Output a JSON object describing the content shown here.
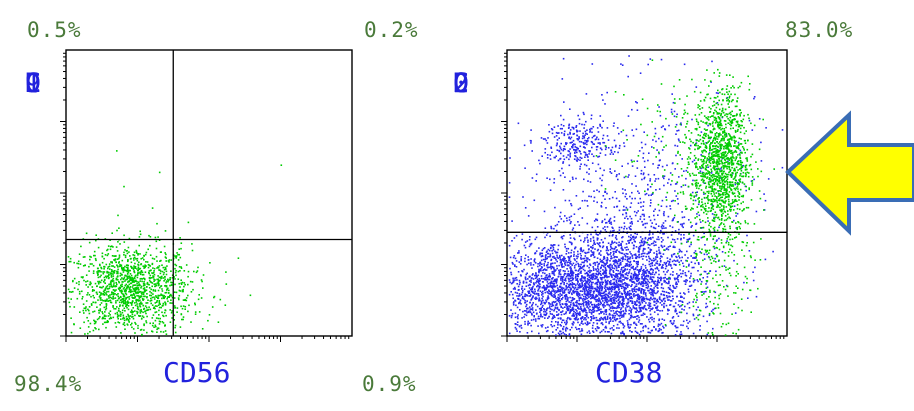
{
  "chart_data": [
    {
      "type": "scatter",
      "panel": "left",
      "xlabel": "CD56",
      "ylabel_chars": [
        "C",
        "D",
        "1",
        "9"
      ],
      "quadrants": {
        "top_left": "0.5%",
        "top_right": "0.2%",
        "bottom_left": "98.4%",
        "bottom_right": "0.9%"
      },
      "xlim": [
        0,
        4
      ],
      "ylim": [
        0,
        4
      ],
      "x_scale": "log",
      "y_scale": "log",
      "gates": {
        "x": 1.5,
        "y": 1.35
      },
      "series": [
        {
          "color": "#00cc00",
          "clusters": [
            {
              "cx": 0.9,
              "cy": 0.65,
              "sx": 0.42,
              "sy": 0.32,
              "n": 1400
            },
            {
              "cx": 2.2,
              "cy": 0.7,
              "sx": 0.6,
              "sy": 0.4,
              "n": 6
            }
          ],
          "points": [
            [
              0.8,
              2.1
            ],
            [
              1.3,
              2.3
            ],
            [
              0.7,
              2.6
            ],
            [
              3.0,
              2.4
            ],
            [
              1.7,
              1.6
            ],
            [
              2.4,
              1.1
            ],
            [
              1.2,
              1.8
            ]
          ]
        }
      ]
    },
    {
      "type": "scatter",
      "panel": "right",
      "xlabel": "CD38",
      "ylabel_chars": [
        "C",
        "D",
        "2",
        "0"
      ],
      "quadrants": {
        "top_right": "83.0%"
      },
      "xlim": [
        0,
        4
      ],
      "ylim": [
        0,
        4
      ],
      "x_scale": "log",
      "y_scale": "log",
      "gates": {
        "y": 1.45
      },
      "series": [
        {
          "color": "#2a2aee",
          "clusters": [
            {
              "cx": 0.9,
              "cy": 0.65,
              "sx": 0.55,
              "sy": 0.35,
              "n": 2200
            },
            {
              "cx": 1.9,
              "cy": 0.75,
              "sx": 0.45,
              "sy": 0.45,
              "n": 1400
            },
            {
              "cx": 1.0,
              "cy": 2.7,
              "sx": 0.22,
              "sy": 0.16,
              "n": 220
            },
            {
              "cx": 1.8,
              "cy": 2.0,
              "sx": 0.9,
              "sy": 0.8,
              "n": 700
            }
          ]
        },
        {
          "color": "#00cc00",
          "clusters": [
            {
              "cx": 3.05,
              "cy": 2.45,
              "sx": 0.2,
              "sy": 0.5,
              "n": 1200
            },
            {
              "cx": 2.95,
              "cy": 1.1,
              "sx": 0.25,
              "sy": 0.7,
              "n": 250
            },
            {
              "cx": 2.4,
              "cy": 2.6,
              "sx": 0.5,
              "sy": 0.6,
              "n": 120
            }
          ]
        }
      ]
    }
  ],
  "colors": {
    "pct_text": "#4a7a3a",
    "axis_label": "#2222dd",
    "arrow_fill": "#ffff00",
    "arrow_stroke": "#3a6db5"
  },
  "icons": {
    "arrow": "left-arrow-icon"
  }
}
